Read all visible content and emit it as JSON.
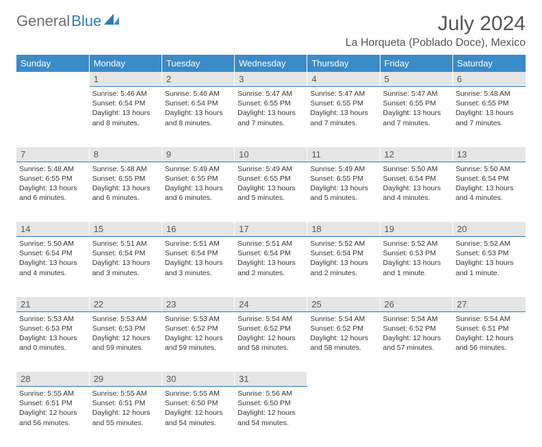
{
  "logo": {
    "text1": "General",
    "text2": "Blue"
  },
  "title": "July 2024",
  "location": "La Horqueta (Poblado Doce), Mexico",
  "colors": {
    "header_bg": "#3b8bc8",
    "header_text": "#ffffff",
    "daynum_bg": "#e5e5e5",
    "daynum_border": "#2a7ab8",
    "logo_gray": "#6d6d6d",
    "logo_blue": "#2a7ab8"
  },
  "weekdays": [
    "Sunday",
    "Monday",
    "Tuesday",
    "Wednesday",
    "Thursday",
    "Friday",
    "Saturday"
  ],
  "weeks": [
    [
      null,
      {
        "n": "1",
        "sr": "5:46 AM",
        "ss": "6:54 PM",
        "dl": "13 hours and 8 minutes."
      },
      {
        "n": "2",
        "sr": "5:46 AM",
        "ss": "6:54 PM",
        "dl": "13 hours and 8 minutes."
      },
      {
        "n": "3",
        "sr": "5:47 AM",
        "ss": "6:55 PM",
        "dl": "13 hours and 7 minutes."
      },
      {
        "n": "4",
        "sr": "5:47 AM",
        "ss": "6:55 PM",
        "dl": "13 hours and 7 minutes."
      },
      {
        "n": "5",
        "sr": "5:47 AM",
        "ss": "6:55 PM",
        "dl": "13 hours and 7 minutes."
      },
      {
        "n": "6",
        "sr": "5:48 AM",
        "ss": "6:55 PM",
        "dl": "13 hours and 7 minutes."
      }
    ],
    [
      {
        "n": "7",
        "sr": "5:48 AM",
        "ss": "6:55 PM",
        "dl": "13 hours and 6 minutes."
      },
      {
        "n": "8",
        "sr": "5:48 AM",
        "ss": "6:55 PM",
        "dl": "13 hours and 6 minutes."
      },
      {
        "n": "9",
        "sr": "5:49 AM",
        "ss": "6:55 PM",
        "dl": "13 hours and 6 minutes."
      },
      {
        "n": "10",
        "sr": "5:49 AM",
        "ss": "6:55 PM",
        "dl": "13 hours and 5 minutes."
      },
      {
        "n": "11",
        "sr": "5:49 AM",
        "ss": "6:55 PM",
        "dl": "13 hours and 5 minutes."
      },
      {
        "n": "12",
        "sr": "5:50 AM",
        "ss": "6:54 PM",
        "dl": "13 hours and 4 minutes."
      },
      {
        "n": "13",
        "sr": "5:50 AM",
        "ss": "6:54 PM",
        "dl": "13 hours and 4 minutes."
      }
    ],
    [
      {
        "n": "14",
        "sr": "5:50 AM",
        "ss": "6:54 PM",
        "dl": "13 hours and 4 minutes."
      },
      {
        "n": "15",
        "sr": "5:51 AM",
        "ss": "6:54 PM",
        "dl": "13 hours and 3 minutes."
      },
      {
        "n": "16",
        "sr": "5:51 AM",
        "ss": "6:54 PM",
        "dl": "13 hours and 3 minutes."
      },
      {
        "n": "17",
        "sr": "5:51 AM",
        "ss": "6:54 PM",
        "dl": "13 hours and 2 minutes."
      },
      {
        "n": "18",
        "sr": "5:52 AM",
        "ss": "6:54 PM",
        "dl": "13 hours and 2 minutes."
      },
      {
        "n": "19",
        "sr": "5:52 AM",
        "ss": "6:53 PM",
        "dl": "13 hours and 1 minute."
      },
      {
        "n": "20",
        "sr": "5:52 AM",
        "ss": "6:53 PM",
        "dl": "13 hours and 1 minute."
      }
    ],
    [
      {
        "n": "21",
        "sr": "5:53 AM",
        "ss": "6:53 PM",
        "dl": "13 hours and 0 minutes."
      },
      {
        "n": "22",
        "sr": "5:53 AM",
        "ss": "6:53 PM",
        "dl": "12 hours and 59 minutes."
      },
      {
        "n": "23",
        "sr": "5:53 AM",
        "ss": "6:52 PM",
        "dl": "12 hours and 59 minutes."
      },
      {
        "n": "24",
        "sr": "5:54 AM",
        "ss": "6:52 PM",
        "dl": "12 hours and 58 minutes."
      },
      {
        "n": "25",
        "sr": "5:54 AM",
        "ss": "6:52 PM",
        "dl": "12 hours and 58 minutes."
      },
      {
        "n": "26",
        "sr": "5:54 AM",
        "ss": "6:52 PM",
        "dl": "12 hours and 57 minutes."
      },
      {
        "n": "27",
        "sr": "5:54 AM",
        "ss": "6:51 PM",
        "dl": "12 hours and 56 minutes."
      }
    ],
    [
      {
        "n": "28",
        "sr": "5:55 AM",
        "ss": "6:51 PM",
        "dl": "12 hours and 56 minutes."
      },
      {
        "n": "29",
        "sr": "5:55 AM",
        "ss": "6:51 PM",
        "dl": "12 hours and 55 minutes."
      },
      {
        "n": "30",
        "sr": "5:55 AM",
        "ss": "6:50 PM",
        "dl": "12 hours and 54 minutes."
      },
      {
        "n": "31",
        "sr": "5:56 AM",
        "ss": "6:50 PM",
        "dl": "12 hours and 54 minutes."
      },
      null,
      null,
      null
    ]
  ],
  "labels": {
    "sunrise": "Sunrise:",
    "sunset": "Sunset:",
    "daylight": "Daylight:"
  }
}
